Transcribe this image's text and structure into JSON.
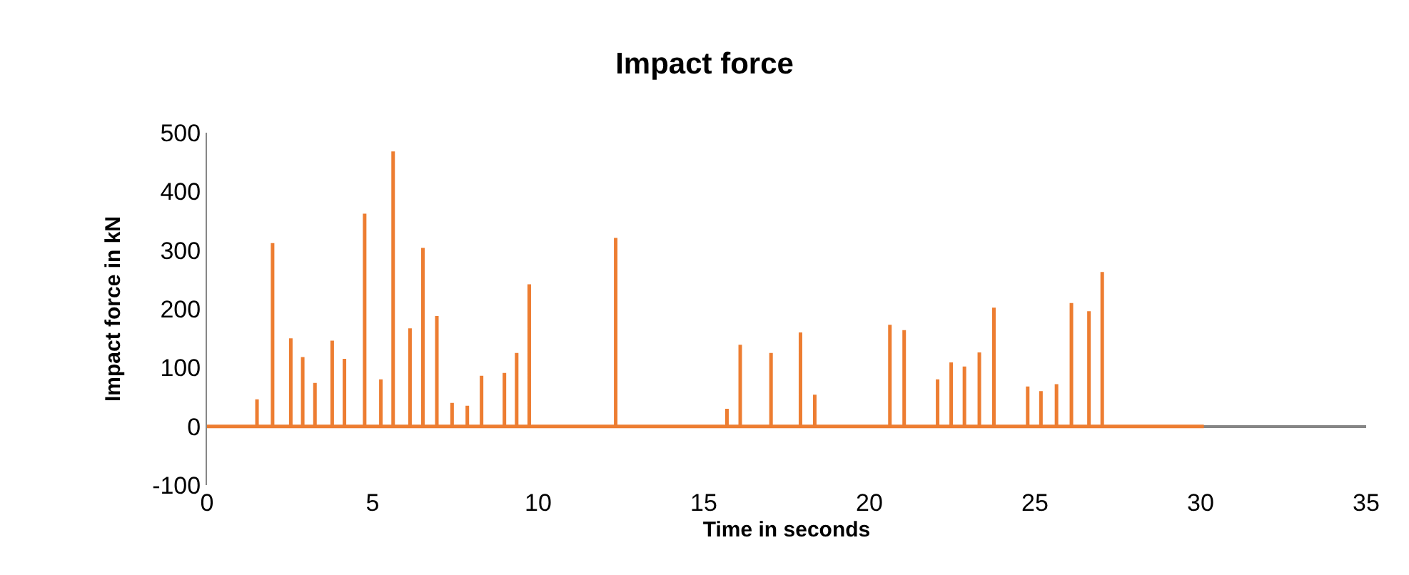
{
  "chart_data": {
    "type": "line",
    "title": "Impact force",
    "xlabel": "Time in seconds",
    "ylabel": "Impact force in kN",
    "series": [
      {
        "color": "#ed7d31",
        "line_style": "solid",
        "x": [
          0,
          1.51,
          1.51,
          1.51,
          1.98,
          1.98,
          1.98,
          2.53,
          2.53,
          2.53,
          2.89,
          2.89,
          2.89,
          3.26,
          3.26,
          3.26,
          3.78,
          3.78,
          3.78,
          4.15,
          4.15,
          4.15,
          4.76,
          4.76,
          4.76,
          5.25,
          5.25,
          5.25,
          5.62,
          5.62,
          5.62,
          6.13,
          6.13,
          6.13,
          6.52,
          6.52,
          6.52,
          6.94,
          6.94,
          6.94,
          7.4,
          7.4,
          7.4,
          7.86,
          7.86,
          7.86,
          8.29,
          8.29,
          8.29,
          8.98,
          8.98,
          8.98,
          9.35,
          9.35,
          9.35,
          9.73,
          9.73,
          9.73,
          12.34,
          12.34,
          12.34,
          15.7,
          15.7,
          15.7,
          16.1,
          16.1,
          16.1,
          17.03,
          17.03,
          17.03,
          17.92,
          17.92,
          17.92,
          18.35,
          18.35,
          18.35,
          20.62,
          20.62,
          20.62,
          21.05,
          21.05,
          21.05,
          22.06,
          22.06,
          22.06,
          22.47,
          22.47,
          22.47,
          22.87,
          22.87,
          22.87,
          23.32,
          23.32,
          23.32,
          23.76,
          23.76,
          23.76,
          24.78,
          24.78,
          24.78,
          25.18,
          25.18,
          25.18,
          25.65,
          25.65,
          25.65,
          26.1,
          26.1,
          26.1,
          26.63,
          26.63,
          26.63,
          27.03,
          27.03,
          27.03,
          30.1
        ],
        "values": [
          0,
          0,
          46,
          0,
          0,
          312,
          0,
          0,
          150,
          0,
          0,
          118,
          0,
          0,
          74,
          0,
          0,
          146,
          0,
          0,
          115,
          0,
          0,
          362,
          0,
          0,
          80,
          0,
          0,
          468,
          0,
          0,
          167,
          0,
          0,
          304,
          0,
          0,
          188,
          0,
          0,
          40,
          0,
          0,
          35,
          0,
          0,
          86,
          0,
          0,
          91,
          0,
          0,
          125,
          0,
          0,
          242,
          0,
          0,
          321,
          0,
          0,
          30,
          0,
          0,
          139,
          0,
          0,
          125,
          0,
          0,
          160,
          0,
          0,
          54,
          0,
          0,
          173,
          0,
          0,
          164,
          0,
          0,
          80,
          0,
          0,
          109,
          0,
          0,
          102,
          0,
          0,
          126,
          0,
          0,
          202,
          0,
          0,
          68,
          0,
          0,
          60,
          0,
          0,
          72,
          0,
          0,
          210,
          0,
          0,
          196,
          0,
          0,
          263,
          0,
          0
        ]
      }
    ],
    "xlim": [
      0,
      35
    ],
    "xticks": [
      0,
      5,
      10,
      15,
      20,
      25,
      30,
      35
    ],
    "ylim": [
      -100,
      500
    ],
    "yticks": [
      -100,
      0,
      100,
      200,
      300,
      400,
      500
    ],
    "marker": "none"
  }
}
